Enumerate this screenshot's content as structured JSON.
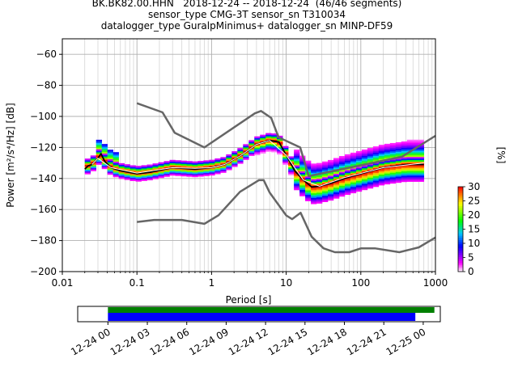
{
  "title_lines": [
    "BK.BK82.00.HHN   2018-12-24 -- 2018-12-24  (46/46 segments)",
    "sensor_type CMG-3T sensor_sn T310034",
    "datalogger_type GuralpMinimus+ datalogger_sn MINP-DF59"
  ],
  "chart_data": [
    {
      "type": "heatmap",
      "xlabel": "Period [s]",
      "ylabel": "Power [m²/s⁴/Hz] [dB]",
      "x_scale": "log",
      "xlim": [
        0.01,
        1000
      ],
      "ylim": [
        -200,
        -50
      ],
      "x_ticks": [
        0.01,
        0.1,
        1,
        10,
        100,
        1000
      ],
      "x_tick_labels": [
        "0.01",
        "0.1",
        "1",
        "10",
        "100",
        "1000"
      ],
      "y_ticks": [
        -200,
        -180,
        -160,
        -140,
        -120,
        -100,
        -80,
        -60
      ],
      "y_tick_labels": [
        "−200",
        "−180",
        "−160",
        "−140",
        "−120",
        "−100",
        "−80",
        "−60"
      ],
      "grid": true,
      "colorbar": {
        "label": "[%]",
        "ticks": [
          0,
          5,
          10,
          15,
          20,
          25,
          30
        ],
        "range": [
          0,
          30
        ]
      },
      "series": [
        {
          "role": "nhnm",
          "color": "#666666",
          "x": [
            0.1,
            0.22,
            0.32,
            0.8,
            3.8,
            4.6,
            6.3,
            7.9,
            15.4,
            20,
            354.8,
            1000
          ],
          "y": [
            -91.5,
            -97.4,
            -110.5,
            -120,
            -98,
            -96.5,
            -101,
            -113.5,
            -120,
            -138.5,
            -126,
            -112.5
          ]
        },
        {
          "role": "nlnm",
          "color": "#666666",
          "x": [
            0.1,
            0.17,
            0.4,
            0.8,
            1.24,
            2.4,
            4.3,
            5.0,
            6.0,
            10.0,
            12.0,
            15.6,
            21.9,
            31.6,
            45,
            70,
            101,
            154,
            328,
            600,
            1000
          ],
          "y": [
            -168,
            -166.7,
            -166.7,
            -169.2,
            -163.7,
            -148.6,
            -141.1,
            -141.1,
            -149,
            -163.8,
            -166.2,
            -162.1,
            -177.5,
            -185,
            -187.5,
            -187.5,
            -185,
            -185,
            -187.5,
            -184.4,
            -178
          ]
        },
        {
          "role": "mean",
          "color": "#000000",
          "x": [
            0.02,
            0.022,
            0.025,
            0.03,
            0.033,
            0.037,
            0.045,
            0.06,
            0.1,
            0.15,
            0.3,
            0.6,
            1.0,
            1.5,
            2.5,
            4,
            6,
            8,
            10,
            13,
            17,
            22,
            28,
            40,
            60,
            100,
            200,
            400,
            700
          ],
          "y": [
            -134,
            -132,
            -131,
            -127,
            -124,
            -129,
            -133,
            -135,
            -137,
            -136,
            -133,
            -134,
            -133,
            -131,
            -125,
            -118,
            -115.5,
            -116.5,
            -125,
            -135,
            -141,
            -145.5,
            -145,
            -143,
            -140,
            -137,
            -133,
            -131,
            -131
          ]
        },
        {
          "role": "mode",
          "color": "#ffffff",
          "x": [
            0.025,
            0.03,
            0.045,
            0.1,
            0.3,
            0.6,
            1.0,
            1.5,
            2.5,
            4,
            6,
            10,
            17,
            28,
            60,
            200,
            700
          ],
          "y": [
            -131,
            -127,
            -133,
            -136.5,
            -133,
            -133.5,
            -133,
            -131,
            -125,
            -118,
            -115.5,
            -125,
            -141,
            -145,
            -139.5,
            -133,
            -130
          ]
        }
      ]
    },
    {
      "type": "bar",
      "description_role": "data-availability",
      "x_tick_labels": [
        "12-24 00",
        "12-24 03",
        "12-24 06",
        "12-24 09",
        "12-24 12",
        "12-24 15",
        "12-24 18",
        "12-24 21",
        "12-25 00"
      ],
      "x_hours": [
        0,
        3,
        6,
        9,
        12,
        15,
        18,
        21,
        24
      ],
      "xlim_hours": [
        -2.3,
        25.3
      ],
      "segments": [
        {
          "color": "#008000",
          "start_hour": 0.0,
          "end_hour": 24.85
        },
        {
          "color": "#0000ff",
          "start_hour": 0.0,
          "end_hour": 23.4
        }
      ]
    }
  ]
}
